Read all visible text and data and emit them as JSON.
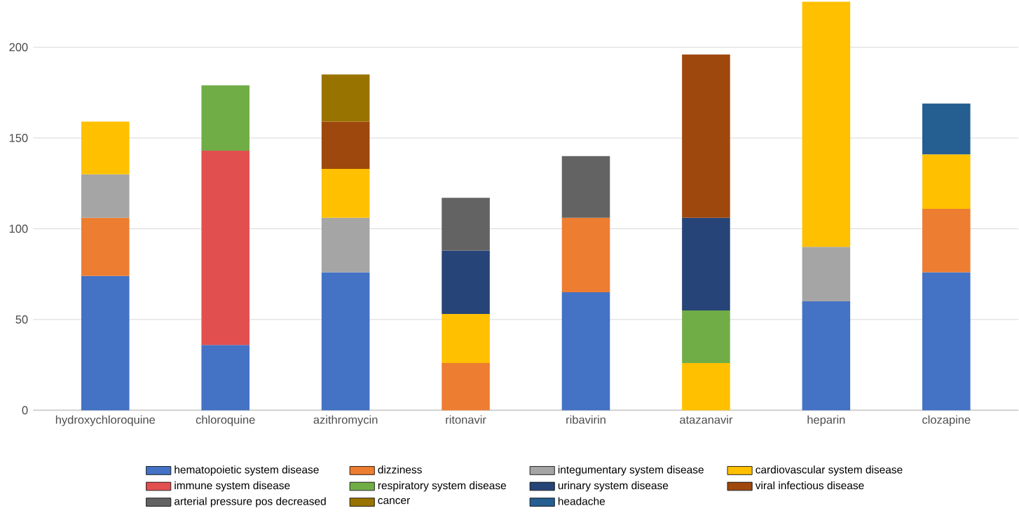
{
  "chart_data": {
    "type": "bar",
    "stacked": true,
    "categories": [
      "hydroxychloroquine",
      "chloroquine",
      "azithromycin",
      "ritonavir",
      "ribavirin",
      "atazanavir",
      "heparin",
      "clozapine"
    ],
    "series": [
      {
        "name": "hematopoietic system disease",
        "color": "#4472c4",
        "values": [
          74,
          36,
          76,
          null,
          65,
          null,
          60,
          76
        ]
      },
      {
        "name": "dizziness",
        "color": "#ed7d31",
        "values": [
          32,
          null,
          null,
          26,
          41,
          null,
          null,
          35
        ]
      },
      {
        "name": "integumentary system disease",
        "color": "#a5a5a5",
        "values": [
          24,
          null,
          30,
          null,
          null,
          null,
          30,
          null
        ]
      },
      {
        "name": "cardiovascular system disease",
        "color": "#ffc000",
        "values": [
          29,
          null,
          27,
          27,
          null,
          26,
          135,
          30
        ]
      },
      {
        "name": "immune system disease",
        "color": "#e24f4f",
        "values": [
          null,
          107,
          null,
          null,
          null,
          null,
          null,
          null
        ]
      },
      {
        "name": "respiratory system disease",
        "color": "#70ad47",
        "values": [
          null,
          36,
          null,
          null,
          null,
          29,
          null,
          null
        ]
      },
      {
        "name": "urinary system disease",
        "color": "#264478",
        "values": [
          null,
          null,
          null,
          35,
          null,
          51,
          null,
          null
        ]
      },
      {
        "name": "viral infectious disease",
        "color": "#9e480e",
        "values": [
          null,
          null,
          26,
          null,
          null,
          90,
          null,
          null
        ]
      },
      {
        "name": "arterial pressure pos decreased",
        "color": "#636363",
        "values": [
          null,
          null,
          null,
          29,
          34,
          null,
          null,
          null
        ]
      },
      {
        "name": "cancer",
        "color": "#997300",
        "values": [
          null,
          null,
          26,
          null,
          null,
          null,
          null,
          null
        ]
      },
      {
        "name": "headache",
        "color": "#255e91",
        "values": [
          null,
          null,
          null,
          null,
          null,
          null,
          null,
          28
        ]
      }
    ],
    "ylim": [
      0,
      226
    ],
    "yticks": [
      0,
      50,
      100,
      150,
      200
    ],
    "grid": "y",
    "legend": "bottom"
  }
}
